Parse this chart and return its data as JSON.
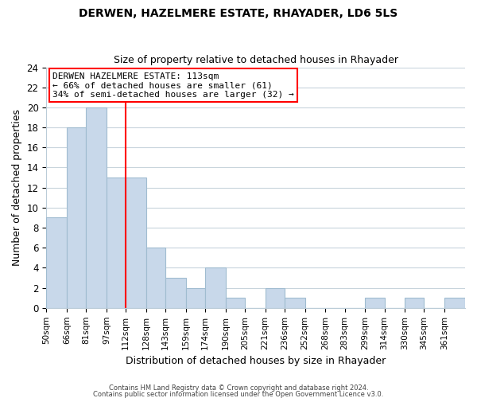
{
  "title": "DERWEN, HAZELMERE ESTATE, RHAYADER, LD6 5LS",
  "subtitle": "Size of property relative to detached houses in Rhayader",
  "xlabel": "Distribution of detached houses by size in Rhayader",
  "ylabel": "Number of detached properties",
  "bar_heights": [
    9,
    18,
    20,
    13,
    13,
    6,
    3,
    2,
    4,
    1,
    0,
    2,
    1,
    0,
    0,
    0,
    1,
    0,
    1,
    0,
    1
  ],
  "bin_edges": [
    50,
    66,
    81,
    97,
    112,
    128,
    143,
    159,
    174,
    190,
    205,
    221,
    236,
    252,
    268,
    283,
    299,
    314,
    330,
    345,
    361,
    377
  ],
  "tick_labels": [
    "50sqm",
    "66sqm",
    "81sqm",
    "97sqm",
    "112sqm",
    "128sqm",
    "143sqm",
    "159sqm",
    "174sqm",
    "190sqm",
    "205sqm",
    "221sqm",
    "236sqm",
    "252sqm",
    "268sqm",
    "283sqm",
    "299sqm",
    "314sqm",
    "330sqm",
    "345sqm",
    "361sqm"
  ],
  "tick_positions": [
    50,
    66,
    81,
    97,
    112,
    128,
    143,
    159,
    174,
    190,
    205,
    221,
    236,
    252,
    268,
    283,
    299,
    314,
    330,
    345,
    361
  ],
  "bar_color": "#c8d8ea",
  "bar_edge_color": "#a0bcd0",
  "red_line_x": 112,
  "ylim": [
    0,
    24
  ],
  "yticks": [
    0,
    2,
    4,
    6,
    8,
    10,
    12,
    14,
    16,
    18,
    20,
    22,
    24
  ],
  "annotation_text": "DERWEN HAZELMERE ESTATE: 113sqm\n← 66% of detached houses are smaller (61)\n34% of semi-detached houses are larger (32) →",
  "footer_line1": "Contains HM Land Registry data © Crown copyright and database right 2024.",
  "footer_line2": "Contains public sector information licensed under the Open Government Licence v3.0.",
  "background_color": "#ffffff",
  "grid_color": "#c8d4dc"
}
